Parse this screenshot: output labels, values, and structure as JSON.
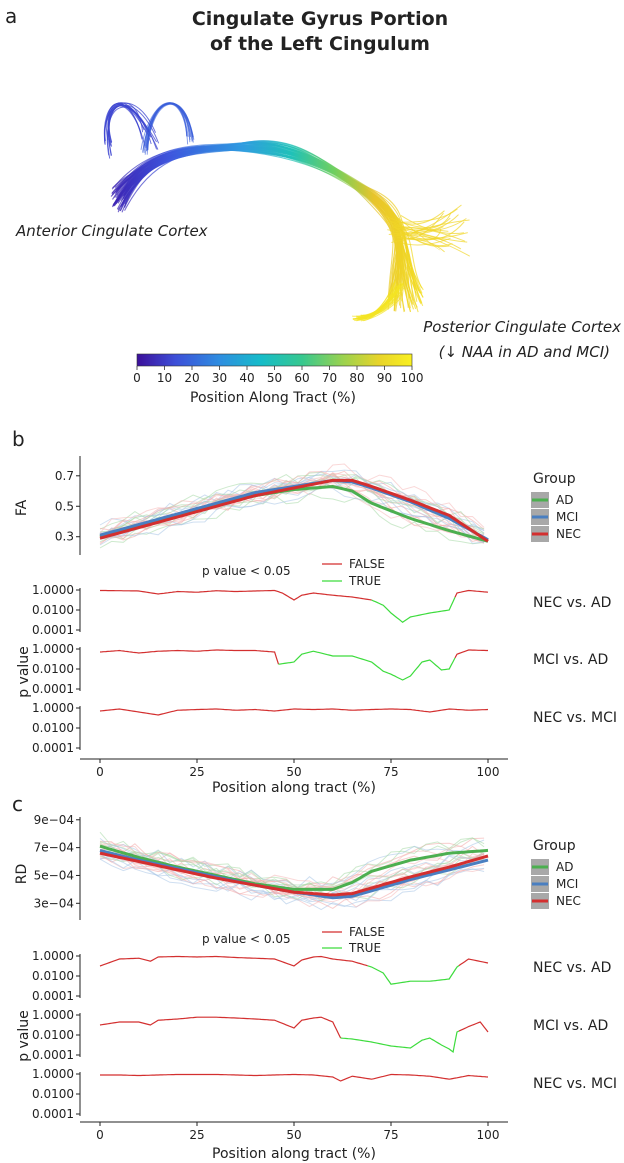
{
  "panel_a": {
    "label": "a",
    "title_line1": "Cingulate Gyrus Portion",
    "title_line2": "of the Left Cingulum",
    "anterior_label": "Anterior Cingulate Cortex",
    "posterior_label_line1": "Posterior Cingulate Cortex",
    "posterior_label_line2": "(↓ NAA in AD and MCI)",
    "colorbar_label": "Position Along Tract (%)",
    "colorbar_ticks": [
      "0",
      "10",
      "20",
      "30",
      "40",
      "50",
      "60",
      "70",
      "80",
      "90",
      "100"
    ],
    "colormap": [
      "#3b0f9a",
      "#3d4fd8",
      "#2e8de0",
      "#16bcc9",
      "#37c88f",
      "#9bd24e",
      "#e8d42a",
      "#f9f021"
    ]
  },
  "panel_b": {
    "label": "b",
    "ylabel_top": "FA",
    "ylabel_p": "p value",
    "xlabel": "Position along tract (%)",
    "legend_title": "Group",
    "pval_legend_title": "p value <  0.05",
    "pval_false": "FALSE",
    "pval_true": "TRUE",
    "comparisons": [
      "NEC vs. AD",
      "MCI vs. AD",
      "NEC vs. MCI"
    ]
  },
  "panel_c": {
    "label": "c",
    "ylabel_top": "RD",
    "ylabel_p": "p value",
    "xlabel": "Position along tract (%)",
    "legend_title": "Group",
    "pval_legend_title": "p value <  0.05",
    "pval_false": "FALSE",
    "pval_true": "TRUE",
    "comparisons": [
      "NEC vs. AD",
      "MCI vs. AD",
      "NEC vs. MCI"
    ]
  },
  "colors": {
    "AD": "#4caf50",
    "MCI": "#4a7fc1",
    "NEC": "#d32f2f",
    "FALSE": "#d32f2f",
    "TRUE": "#3ddc3d"
  },
  "chart_data": [
    {
      "type": "line",
      "panel": "b",
      "ylabel": "FA",
      "xlabel": "Position along tract (%)",
      "xlim": [
        0,
        100
      ],
      "xticks": [
        "0",
        "25",
        "50",
        "75",
        "100"
      ],
      "yticks": [
        "0.3",
        "0.5",
        "0.7"
      ],
      "ylim": [
        0.18,
        0.83
      ],
      "legend": [
        "AD",
        "MCI",
        "NEC"
      ],
      "series": [
        {
          "name": "AD",
          "x": [
            0,
            10,
            20,
            30,
            40,
            50,
            60,
            65,
            70,
            80,
            90,
            100
          ],
          "y": [
            0.3,
            0.37,
            0.44,
            0.51,
            0.57,
            0.61,
            0.63,
            0.6,
            0.52,
            0.42,
            0.34,
            0.27
          ]
        },
        {
          "name": "MCI",
          "x": [
            0,
            10,
            20,
            30,
            40,
            50,
            60,
            65,
            70,
            80,
            90,
            100
          ],
          "y": [
            0.31,
            0.38,
            0.45,
            0.52,
            0.59,
            0.63,
            0.67,
            0.66,
            0.62,
            0.53,
            0.42,
            0.28
          ]
        },
        {
          "name": "NEC",
          "x": [
            0,
            10,
            20,
            30,
            40,
            50,
            60,
            65,
            70,
            80,
            90,
            100
          ],
          "y": [
            0.29,
            0.36,
            0.43,
            0.5,
            0.57,
            0.62,
            0.67,
            0.67,
            0.63,
            0.54,
            0.44,
            0.27
          ]
        }
      ]
    },
    {
      "type": "line",
      "panel": "b",
      "ylabel": "p value",
      "xlabel": "Position along tract (%)",
      "yscale": "log",
      "yticks": [
        "0.0001",
        "0.0100",
        "1.0000"
      ],
      "ylim": [
        0.0001,
        1.0
      ],
      "series": [
        {
          "name": "NEC vs. AD",
          "x": [
            0,
            5,
            10,
            15,
            20,
            25,
            30,
            35,
            40,
            45,
            47,
            50,
            52,
            55,
            60,
            65,
            70,
            73,
            75,
            78,
            80,
            85,
            90,
            92,
            95,
            100
          ],
          "y": [
            0.9,
            0.85,
            0.8,
            0.4,
            0.7,
            0.6,
            0.85,
            0.7,
            0.8,
            0.9,
            0.5,
            0.1,
            0.3,
            0.5,
            0.3,
            0.2,
            0.1,
            0.03,
            0.005,
            0.0006,
            0.002,
            0.005,
            0.01,
            0.5,
            0.9,
            0.6
          ],
          "sig_from": 70,
          "sig_to": 91
        },
        {
          "name": "MCI vs. AD",
          "x": [
            0,
            5,
            10,
            15,
            20,
            25,
            30,
            35,
            40,
            45,
            46,
            50,
            52,
            55,
            60,
            65,
            70,
            73,
            75,
            78,
            80,
            83,
            85,
            88,
            90,
            92,
            95,
            100
          ],
          "y": [
            0.5,
            0.7,
            0.4,
            0.6,
            0.7,
            0.6,
            0.8,
            0.7,
            0.7,
            0.5,
            0.03,
            0.05,
            0.3,
            0.6,
            0.2,
            0.2,
            0.05,
            0.006,
            0.003,
            0.0008,
            0.002,
            0.05,
            0.08,
            0.008,
            0.01,
            0.3,
            0.8,
            0.7
          ],
          "sig_from": 46,
          "sig_to": 91
        },
        {
          "name": "NEC vs. MCI",
          "x": [
            0,
            5,
            10,
            15,
            20,
            25,
            30,
            35,
            40,
            45,
            50,
            55,
            60,
            65,
            70,
            75,
            80,
            85,
            90,
            95,
            100
          ],
          "y": [
            0.5,
            0.8,
            0.4,
            0.2,
            0.6,
            0.7,
            0.8,
            0.6,
            0.7,
            0.5,
            0.8,
            0.7,
            0.8,
            0.6,
            0.7,
            0.8,
            0.7,
            0.4,
            0.8,
            0.6,
            0.7
          ]
        }
      ]
    },
    {
      "type": "line",
      "panel": "c",
      "ylabel": "RD",
      "xlabel": "Position along tract (%)",
      "xlim": [
        0,
        100
      ],
      "xticks": [
        "0",
        "25",
        "50",
        "75",
        "100"
      ],
      "yticks": [
        "3e−04",
        "5e−04",
        "7e−04",
        "9e−04"
      ],
      "ylim": [
        0.00018,
        0.00092
      ],
      "legend": [
        "AD",
        "MCI",
        "NEC"
      ],
      "series": [
        {
          "name": "AD",
          "x": [
            0,
            10,
            20,
            30,
            40,
            50,
            60,
            65,
            70,
            80,
            90,
            100
          ],
          "y": [
            0.00071,
            0.00063,
            0.00056,
            0.0005,
            0.00044,
            0.0004,
            0.0004,
            0.00045,
            0.00053,
            0.00061,
            0.00066,
            0.00068
          ]
        },
        {
          "name": "MCI",
          "x": [
            0,
            10,
            20,
            30,
            40,
            50,
            60,
            65,
            70,
            80,
            90,
            100
          ],
          "y": [
            0.00068,
            0.00061,
            0.00055,
            0.00049,
            0.00043,
            0.00038,
            0.00034,
            0.00035,
            0.00039,
            0.00047,
            0.00054,
            0.00061
          ]
        },
        {
          "name": "NEC",
          "x": [
            0,
            10,
            20,
            30,
            40,
            50,
            60,
            65,
            70,
            80,
            90,
            100
          ],
          "y": [
            0.00066,
            0.0006,
            0.00054,
            0.00048,
            0.00043,
            0.00038,
            0.00036,
            0.00037,
            0.00041,
            0.00049,
            0.00056,
            0.00064
          ]
        }
      ]
    },
    {
      "type": "line",
      "panel": "c",
      "ylabel": "p value",
      "xlabel": "Position along tract (%)",
      "yscale": "log",
      "yticks": [
        "0.0001",
        "0.0100",
        "1.0000"
      ],
      "ylim": [
        0.0001,
        1.0
      ],
      "series": [
        {
          "name": "NEC vs. AD",
          "x": [
            0,
            5,
            10,
            13,
            15,
            20,
            25,
            30,
            35,
            40,
            45,
            50,
            52,
            55,
            57,
            60,
            65,
            70,
            73,
            75,
            80,
            85,
            90,
            92,
            95,
            100
          ],
          "y": [
            0.1,
            0.5,
            0.6,
            0.3,
            0.8,
            0.9,
            0.8,
            0.9,
            0.7,
            0.6,
            0.5,
            0.1,
            0.4,
            0.8,
            0.9,
            0.5,
            0.3,
            0.08,
            0.02,
            0.0015,
            0.003,
            0.003,
            0.005,
            0.08,
            0.5,
            0.2
          ],
          "sig_from": 69,
          "sig_to": 92
        },
        {
          "name": "MCI vs. AD",
          "x": [
            0,
            5,
            10,
            13,
            15,
            20,
            25,
            30,
            35,
            40,
            45,
            50,
            52,
            55,
            57,
            60,
            62,
            65,
            70,
            75,
            80,
            83,
            85,
            88,
            90,
            91,
            92,
            95,
            98,
            100
          ],
          "y": [
            0.1,
            0.2,
            0.2,
            0.1,
            0.3,
            0.4,
            0.6,
            0.6,
            0.5,
            0.4,
            0.3,
            0.05,
            0.3,
            0.5,
            0.6,
            0.2,
            0.005,
            0.004,
            0.002,
            0.0008,
            0.0005,
            0.003,
            0.005,
            0.001,
            0.0004,
            0.0002,
            0.02,
            0.07,
            0.2,
            0.02
          ],
          "sig_from": 62,
          "sig_to": 92
        },
        {
          "name": "NEC vs. MCI",
          "x": [
            0,
            5,
            10,
            15,
            20,
            25,
            30,
            35,
            40,
            45,
            50,
            55,
            60,
            62,
            65,
            70,
            75,
            80,
            85,
            90,
            95,
            100
          ],
          "y": [
            0.8,
            0.8,
            0.7,
            0.8,
            0.9,
            0.9,
            0.9,
            0.8,
            0.7,
            0.8,
            0.9,
            0.8,
            0.5,
            0.2,
            0.6,
            0.3,
            0.9,
            0.8,
            0.6,
            0.3,
            0.7,
            0.5
          ]
        }
      ]
    }
  ]
}
